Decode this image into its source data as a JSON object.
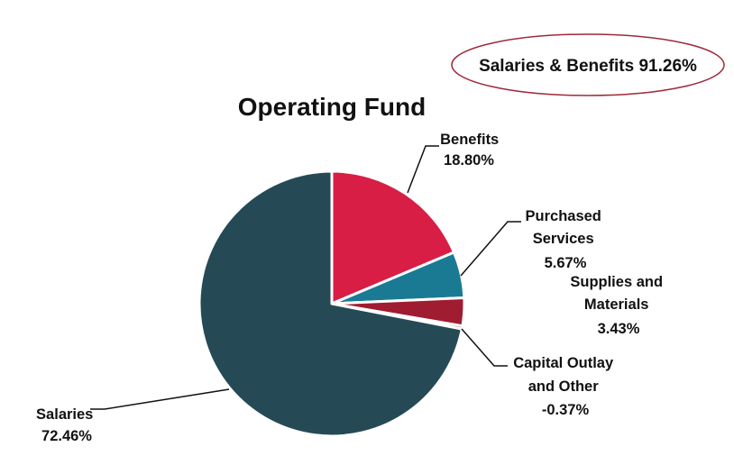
{
  "chart_data": {
    "type": "pie",
    "title": "Operating Fund",
    "callout": "Salaries & Benefits 91.26%",
    "slices": [
      {
        "name": "Benefits",
        "label_lines": [
          "Benefits",
          "18.80%"
        ],
        "value": 18.8,
        "color": "#D81E45"
      },
      {
        "name": "Purchased Services",
        "label_lines": [
          "Purchased",
          "Services",
          "5.67%"
        ],
        "value": 5.67,
        "color": "#1A7A94"
      },
      {
        "name": "Supplies and Materials",
        "label_lines": [
          "Supplies and",
          "Materials",
          "3.43%"
        ],
        "value": 3.43,
        "color": "#A01C30"
      },
      {
        "name": "Capital Outlay and Other",
        "label_lines": [
          "Capital Outlay",
          "and Other",
          "-0.37%"
        ],
        "value": -0.37,
        "color": "#7A1020"
      },
      {
        "name": "Salaries",
        "label_lines": [
          "Salaries",
          "72.46%"
        ],
        "value": 72.46,
        "color": "#254A55"
      }
    ],
    "callout_border_color": "#9E2A3A"
  }
}
